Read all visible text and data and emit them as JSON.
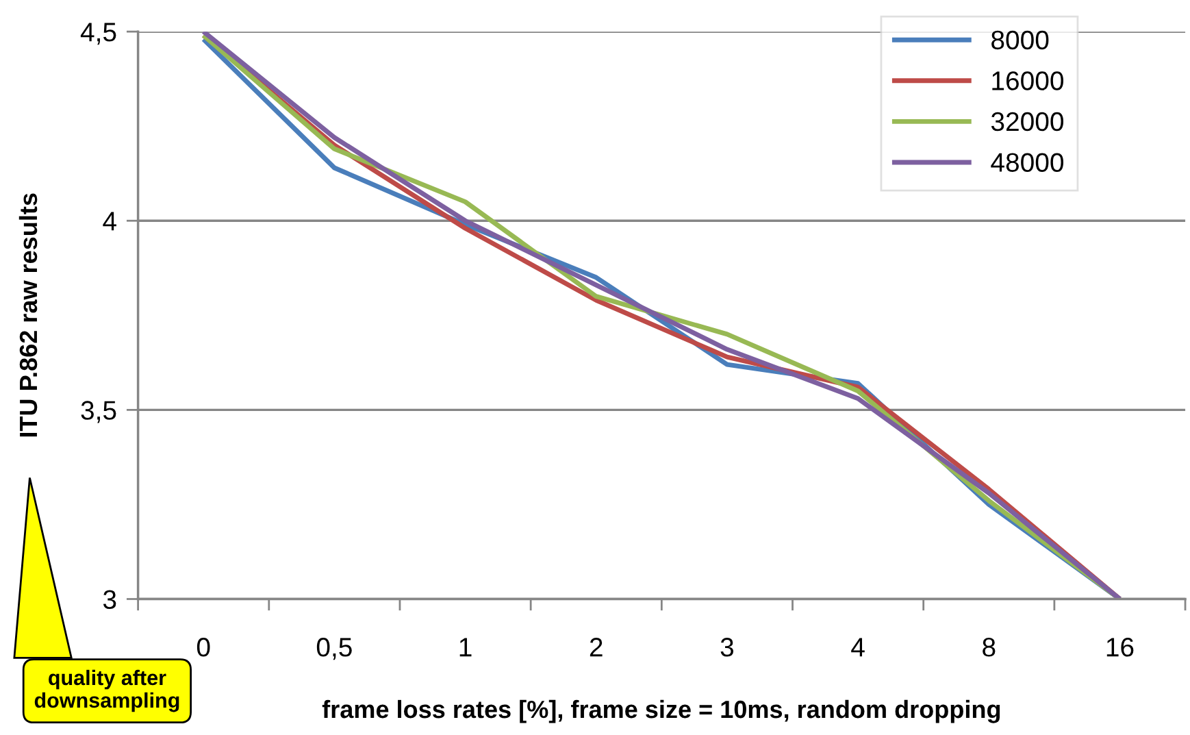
{
  "chart_data": {
    "type": "line",
    "xlabel": "frame loss rates [%], frame size = 10ms, random dropping",
    "ylabel": "ITU P.862 raw results",
    "categories": [
      "0",
      "0,5",
      "1",
      "2",
      "3",
      "4",
      "8",
      "16"
    ],
    "series": [
      {
        "name": "8000",
        "color": "#4a7ebb",
        "values": [
          4.48,
          4.14,
          3.99,
          3.85,
          3.62,
          3.57,
          3.25,
          3.0
        ]
      },
      {
        "name": "16000",
        "color": "#be4b48",
        "values": [
          4.49,
          4.2,
          3.98,
          3.79,
          3.64,
          3.56,
          3.29,
          3.0
        ]
      },
      {
        "name": "32000",
        "color": "#98b954",
        "values": [
          4.49,
          4.19,
          4.05,
          3.8,
          3.7,
          3.55,
          3.26,
          3.0
        ]
      },
      {
        "name": "48000",
        "color": "#7d60a0",
        "values": [
          4.5,
          4.22,
          4.0,
          3.83,
          3.66,
          3.53,
          3.28,
          3.0
        ]
      }
    ],
    "ylim": [
      3,
      4.5
    ],
    "yticks": [
      {
        "value": 3,
        "label": "3"
      },
      {
        "value": 3.5,
        "label": "3,5"
      },
      {
        "value": 4,
        "label": "4"
      },
      {
        "value": 4.5,
        "label": "4,5"
      }
    ],
    "grid": "y",
    "legend": "top right",
    "marker": "none",
    "line_style": "solid",
    "annotations": [
      "quality after downsampling"
    ]
  }
}
